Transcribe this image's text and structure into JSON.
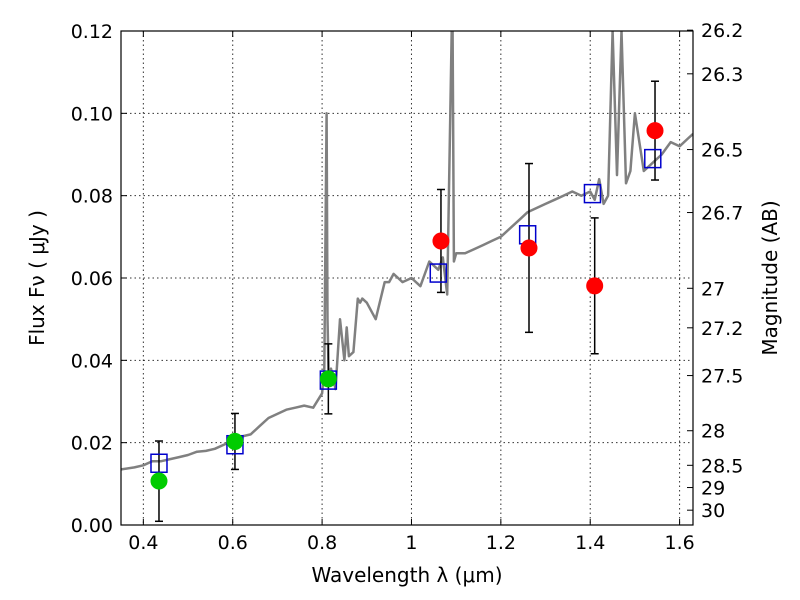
{
  "chart_data": {
    "type": "scatter",
    "xlabel": "Wavelength  λ (μm)",
    "ylabel": "Flux  Fν  ( μJy )",
    "y2label": "Magnitude (AB)",
    "xlim": [
      0.35,
      1.63
    ],
    "ylim": [
      0.0,
      0.12
    ],
    "grid": true,
    "x_ticks": [
      0.4,
      0.6,
      0.8,
      1.0,
      1.2,
      1.4,
      1.6
    ],
    "x_tick_labels": [
      "0.4",
      "0.6",
      "0.8",
      "1",
      "1.2",
      "1.4",
      "1.6"
    ],
    "y_ticks": [
      0.0,
      0.02,
      0.04,
      0.06,
      0.08,
      0.1,
      0.12
    ],
    "y_tick_labels": [
      "0.00",
      "0.02",
      "0.04",
      "0.06",
      "0.08",
      "0.10",
      "0.12"
    ],
    "y2_ticks": [
      {
        "mag": "26.2",
        "flux": 0.1202
      },
      {
        "mag": "26.3",
        "flux": 0.1096
      },
      {
        "mag": "26.5",
        "flux": 0.0912
      },
      {
        "mag": "26.7",
        "flux": 0.0759
      },
      {
        "mag": "27",
        "flux": 0.0575
      },
      {
        "mag": "27.2",
        "flux": 0.0479
      },
      {
        "mag": "27.5",
        "flux": 0.0363
      },
      {
        "mag": "28",
        "flux": 0.0229
      },
      {
        "mag": "28.5",
        "flux": 0.0145
      },
      {
        "mag": "29",
        "flux": 0.0091
      },
      {
        "mag": "30",
        "flux": 0.0036
      }
    ],
    "series": [
      {
        "kind": "model_spectrum",
        "color": "#808080",
        "x": [
          0.35,
          0.38,
          0.4,
          0.42,
          0.44,
          0.46,
          0.48,
          0.5,
          0.52,
          0.54,
          0.56,
          0.58,
          0.6,
          0.62,
          0.64,
          0.66,
          0.68,
          0.7,
          0.72,
          0.74,
          0.76,
          0.78,
          0.8,
          0.805,
          0.81,
          0.812,
          0.815,
          0.82,
          0.83,
          0.84,
          0.85,
          0.855,
          0.86,
          0.87,
          0.88,
          0.885,
          0.89,
          0.9,
          0.92,
          0.94,
          0.95,
          0.96,
          0.97,
          0.98,
          1.0,
          1.02,
          1.04,
          1.06,
          1.07,
          1.08,
          1.09,
          1.092,
          1.095,
          1.1,
          1.12,
          1.14,
          1.16,
          1.18,
          1.2,
          1.22,
          1.24,
          1.26,
          1.28,
          1.3,
          1.32,
          1.34,
          1.36,
          1.38,
          1.4,
          1.41,
          1.42,
          1.43,
          1.44,
          1.45,
          1.46,
          1.47,
          1.48,
          1.49,
          1.5,
          1.52,
          1.54,
          1.56,
          1.58,
          1.6,
          1.62,
          1.63
        ],
        "y": [
          0.0135,
          0.014,
          0.0145,
          0.0155,
          0.0155,
          0.016,
          0.0165,
          0.017,
          0.0178,
          0.018,
          0.0185,
          0.0195,
          0.0205,
          0.0215,
          0.022,
          0.024,
          0.026,
          0.027,
          0.028,
          0.0285,
          0.029,
          0.0285,
          0.032,
          0.038,
          0.1,
          0.05,
          0.035,
          0.038,
          0.033,
          0.05,
          0.04,
          0.048,
          0.041,
          0.042,
          0.055,
          0.054,
          0.055,
          0.054,
          0.05,
          0.059,
          0.059,
          0.061,
          0.06,
          0.059,
          0.06,
          0.058,
          0.064,
          0.062,
          0.065,
          0.056,
          0.12,
          0.12,
          0.064,
          0.066,
          0.066,
          0.067,
          0.068,
          0.069,
          0.07,
          0.072,
          0.074,
          0.076,
          0.077,
          0.078,
          0.079,
          0.08,
          0.081,
          0.08,
          0.081,
          0.079,
          0.084,
          0.078,
          0.08,
          0.12,
          0.085,
          0.12,
          0.083,
          0.086,
          0.1,
          0.086,
          0.088,
          0.09,
          0.093,
          0.092,
          0.094,
          0.095
        ]
      },
      {
        "kind": "model_photometry",
        "marker": "square-open",
        "color": "#0000cc",
        "x": [
          0.435,
          0.605,
          0.814,
          1.06,
          1.26,
          1.405,
          1.54
        ],
        "y": [
          0.015,
          0.0195,
          0.0352,
          0.0612,
          0.0705,
          0.0805,
          0.089
        ]
      },
      {
        "kind": "observed_detections",
        "marker": "circle-filled",
        "color": "#00cc00",
        "x": [
          0.435,
          0.605,
          0.814
        ],
        "y": [
          0.0107,
          0.0203,
          0.0355
        ],
        "err_low": [
          0.0098,
          0.0068,
          0.0085
        ],
        "err_high": [
          0.0097,
          0.0068,
          0.0085
        ]
      },
      {
        "kind": "observed_other",
        "marker": "circle-filled",
        "color": "#ff0000",
        "x": [
          1.066,
          1.263,
          1.41,
          1.545
        ],
        "y": [
          0.069,
          0.0673,
          0.0581,
          0.0958
        ],
        "err_low": [
          0.0125,
          0.0205,
          0.0165,
          0.012
        ],
        "err_high": [
          0.0125,
          0.0205,
          0.0165,
          0.012
        ]
      }
    ]
  }
}
